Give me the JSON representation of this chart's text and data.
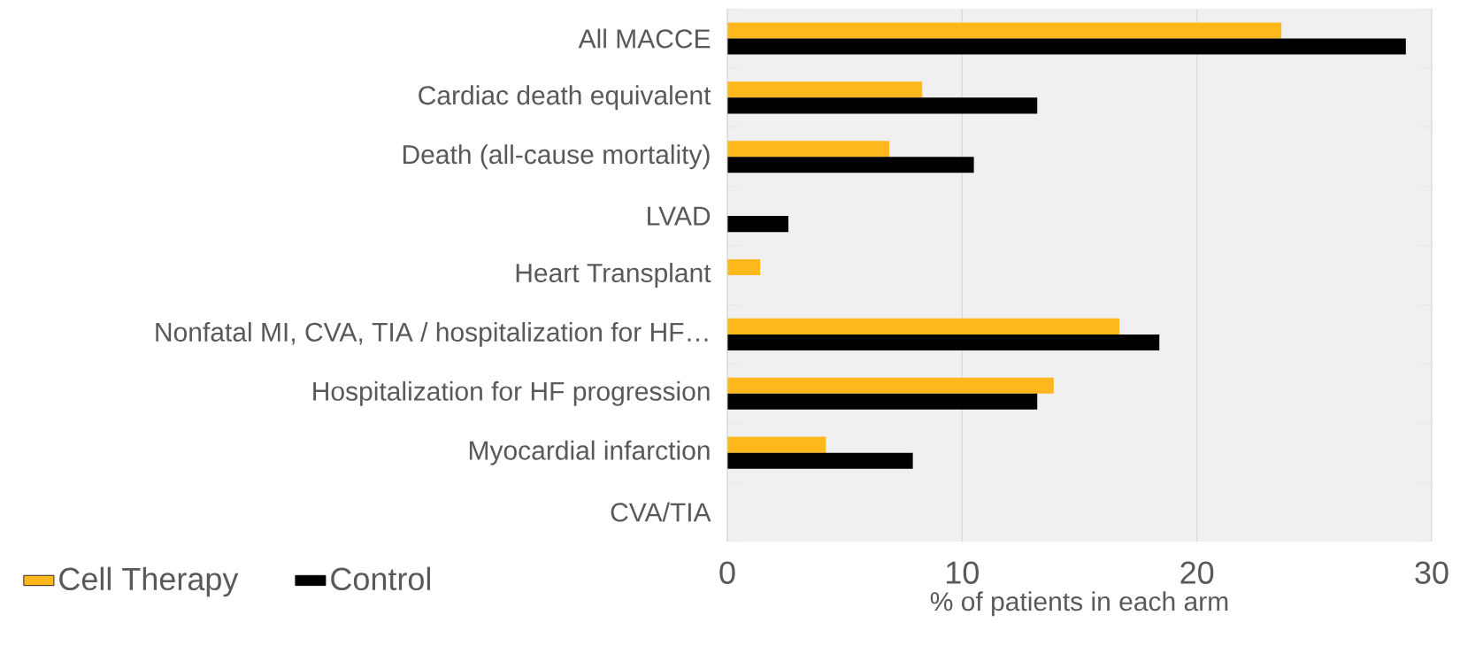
{
  "chart_data": {
    "type": "bar",
    "orientation": "horizontal",
    "xlabel": "% of patients in each arm",
    "categories": [
      "All MACCE",
      "Cardiac death equivalent",
      "Death (all-cause mortality)",
      "LVAD",
      "Heart Transplant",
      "Nonfatal MI, CVA, TIA / hospitalization for HF…",
      "Hospitalization for HF progression",
      "Myocardial infarction",
      "CVA/TIA"
    ],
    "series": [
      {
        "name": "Cell Therapy",
        "color": "#ffb81c",
        "values": [
          23.6,
          8.3,
          6.9,
          0,
          1.4,
          16.7,
          13.9,
          4.2,
          0
        ]
      },
      {
        "name": "Control",
        "color": "#000000",
        "values": [
          28.9,
          13.2,
          10.5,
          2.6,
          0,
          18.4,
          13.2,
          7.9,
          0
        ]
      }
    ],
    "xlim": [
      0,
      30
    ],
    "xticks": [
      0,
      10,
      20,
      30
    ],
    "grid": "x",
    "legend": "bottom left"
  }
}
